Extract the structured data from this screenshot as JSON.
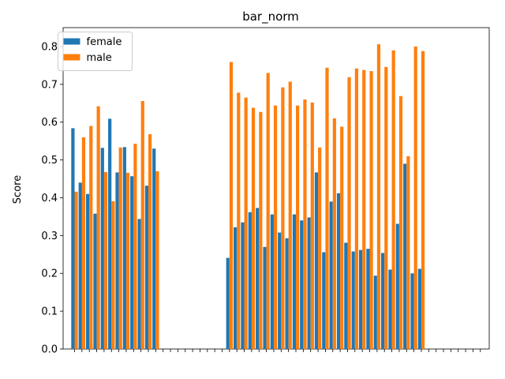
{
  "chart_data": {
    "type": "bar",
    "title": "bar_norm",
    "xlabel": "",
    "ylabel": "Score",
    "ylim": [
      0,
      0.85
    ],
    "yticks": [
      "0.0",
      "0.1",
      "0.2",
      "0.3",
      "0.4",
      "0.5",
      "0.6",
      "0.7",
      "0.8"
    ],
    "grid": false,
    "legend_position": "top-left",
    "categories": [
      "",
      "",
      "",
      "",
      "",
      "",
      "",
      "",
      "",
      "",
      "",
      "",
      "",
      "",
      "",
      "",
      "",
      "",
      "",
      "",
      "",
      "",
      "",
      "",
      "",
      "",
      "",
      "",
      "",
      "",
      "",
      "",
      "",
      "",
      "",
      "",
      "",
      "",
      "",
      "",
      "",
      "",
      "",
      "",
      "",
      "",
      "",
      "",
      "",
      "",
      "",
      "",
      "",
      "",
      "",
      ""
    ],
    "series": [
      {
        "name": "female",
        "color": "#1f77b4",
        "values": [
          0.584,
          0.44,
          0.41,
          0.358,
          0.532,
          0.609,
          0.467,
          0.534,
          0.457,
          0.344,
          0.432,
          0.53,
          null,
          null,
          null,
          null,
          null,
          null,
          null,
          null,
          null,
          0.241,
          0.322,
          0.335,
          0.362,
          0.373,
          0.27,
          0.356,
          0.308,
          0.293,
          0.356,
          0.34,
          0.348,
          0.467,
          0.256,
          0.39,
          0.412,
          0.281,
          0.258,
          0.262,
          0.265,
          0.194,
          0.254,
          0.21,
          0.331,
          0.49,
          0.2,
          0.212,
          null,
          null,
          null,
          null,
          null,
          null,
          null,
          null
        ]
      },
      {
        "name": "male",
        "color": "#ff7f0e",
        "values": [
          0.416,
          0.56,
          0.59,
          0.642,
          0.468,
          0.391,
          0.533,
          0.466,
          0.543,
          0.656,
          0.568,
          0.47,
          null,
          null,
          null,
          null,
          null,
          null,
          null,
          null,
          null,
          0.759,
          0.678,
          0.665,
          0.638,
          0.627,
          0.73,
          0.644,
          0.692,
          0.707,
          0.644,
          0.66,
          0.652,
          0.533,
          0.744,
          0.61,
          0.588,
          0.719,
          0.742,
          0.738,
          0.735,
          0.806,
          0.746,
          0.79,
          0.669,
          0.51,
          0.8,
          0.788,
          null,
          null,
          null,
          null,
          null,
          null,
          null,
          null
        ]
      }
    ]
  }
}
